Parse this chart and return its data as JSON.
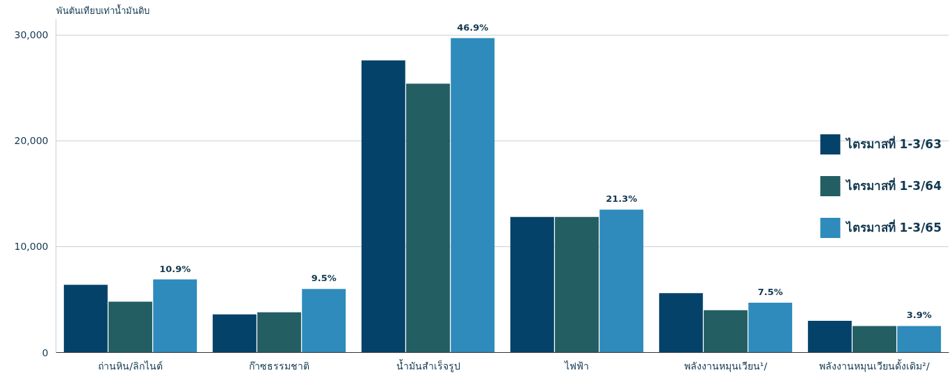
{
  "chart_data": {
    "type": "bar",
    "ylabel": "พันตันเทียบเท่าน้ำมันดิบ",
    "categories": [
      "ถ่านหิน/ลิกไนต์",
      "ก๊าซธรรมชาติ",
      "น้ำมันสำเร็จรูป",
      "ไฟฟ้า",
      "พลังงานหมุนเวียน¹/",
      "พลังงานหมุนเวียนดั้งเดิม²/"
    ],
    "series": [
      {
        "name": "ไตรมาสที่ 1-3/63",
        "color": "#05426a",
        "values": [
          6400,
          3600,
          27600,
          12800,
          5600,
          3000
        ]
      },
      {
        "name": "ไตรมาสที่ 1-3/64",
        "color": "#235e63",
        "values": [
          4800,
          3800,
          25400,
          12800,
          4000,
          2500
        ]
      },
      {
        "name": "ไตรมาสที่ 1-3/65",
        "color": "#2e8bbb",
        "values": [
          6900,
          6000,
          29700,
          13500,
          4700,
          2500
        ]
      }
    ],
    "annotations": [
      "10.9%",
      "9.5%",
      "46.9%",
      "21.3%",
      "7.5%",
      "3.9%"
    ],
    "ylim": [
      0,
      31500
    ],
    "yticks": [
      {
        "value": 0,
        "label": "0"
      },
      {
        "value": 10000,
        "label": "10,000"
      },
      {
        "value": 20000,
        "label": "20,000"
      },
      {
        "value": 30000,
        "label": "30,000"
      }
    ],
    "grid": "y",
    "legend": "right"
  }
}
